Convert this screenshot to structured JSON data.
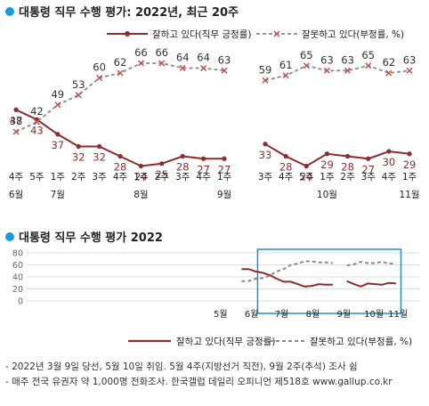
{
  "chart_data": [
    {
      "type": "line",
      "title": "대통령 직무 수행 평가: 2022년, 최근 20주",
      "x": [
        "4주",
        "5주",
        "1주",
        "2주",
        "3주",
        "4주",
        "1주",
        "2주",
        "3주",
        "4주",
        "1주",
        "3주",
        "4주",
        "5주",
        "1주",
        "2주",
        "3주",
        "4주",
        "1주"
      ],
      "month_labels": [
        {
          "label": "6월",
          "index": 0
        },
        {
          "label": "7월",
          "index": 2
        },
        {
          "label": "8월",
          "index": 6
        },
        {
          "label": "9월",
          "index": 10
        },
        {
          "label": "10월",
          "index": 14
        },
        {
          "label": "11월",
          "index": 18
        }
      ],
      "break_after_index": 10,
      "series": [
        {
          "name": "잘하고 있다(직무 긍정률)",
          "color": "#8b2d2d",
          "style": "solid",
          "marker": "dot",
          "values": [
            47,
            43,
            37,
            32,
            32,
            28,
            24,
            25,
            28,
            27,
            27,
            33,
            28,
            24,
            29,
            28,
            27,
            30,
            29
          ]
        },
        {
          "name": "잘못하고 있다(부정률, %)",
          "color": "#8a8a8a",
          "marker_color": "#c0504d",
          "style": "dashed",
          "marker": "x",
          "values": [
            38,
            42,
            49,
            53,
            60,
            62,
            66,
            66,
            64,
            64,
            63,
            59,
            61,
            65,
            63,
            63,
            65,
            62,
            63
          ]
        }
      ],
      "ylim": [
        15,
        75
      ],
      "legend": "top",
      "grid": false
    },
    {
      "type": "line",
      "title": "대통령 직무 수행 평가 2022",
      "x_ticks": [
        "5월",
        "6월",
        "7월",
        "8월",
        "9월",
        "10월",
        "11월"
      ],
      "y_ticks": [
        0,
        20,
        40,
        60,
        80
      ],
      "ylim": [
        0,
        80
      ],
      "grid": true,
      "highlight": "최근 20주 (6월 4주–11월 1주)",
      "series": [
        {
          "name": "잘하고 있다(직무 긍정률)",
          "color": "#8b2d2d",
          "style": "solid",
          "points": [
            [
              "2022-05-08",
              52
            ],
            [
              "2022-05-22",
              52
            ],
            [
              "2022-06-05",
              53
            ],
            [
              "2022-06-12",
              53
            ],
            [
              "2022-06-19",
              49
            ],
            [
              "2022-06-26",
              47
            ],
            [
              "2022-07-03",
              43
            ],
            [
              "2022-07-10",
              37
            ],
            [
              "2022-07-17",
              32
            ],
            [
              "2022-07-24",
              32
            ],
            [
              "2022-07-31",
              28
            ],
            [
              "2022-08-07",
              24
            ],
            [
              "2022-08-14",
              25
            ],
            [
              "2022-08-21",
              28
            ],
            [
              "2022-08-28",
              27
            ],
            [
              "2022-09-04",
              27
            ],
            [
              "2022-09-18",
              33
            ],
            [
              "2022-09-25",
              28
            ],
            [
              "2022-10-02",
              24
            ],
            [
              "2022-10-09",
              29
            ],
            [
              "2022-10-16",
              28
            ],
            [
              "2022-10-23",
              27
            ],
            [
              "2022-10-30",
              30
            ],
            [
              "2022-11-06",
              29
            ]
          ]
        },
        {
          "name": "잘못하고 있다(부정률, %)",
          "color": "#8a8a8a",
          "style": "dashed",
          "points": [
            [
              "2022-05-08",
              37
            ],
            [
              "2022-05-22",
              34
            ],
            [
              "2022-06-05",
              33
            ],
            [
              "2022-06-12",
              33
            ],
            [
              "2022-06-19",
              37
            ],
            [
              "2022-06-26",
              38
            ],
            [
              "2022-07-03",
              42
            ],
            [
              "2022-07-10",
              49
            ],
            [
              "2022-07-17",
              53
            ],
            [
              "2022-07-24",
              60
            ],
            [
              "2022-07-31",
              62
            ],
            [
              "2022-08-07",
              66
            ],
            [
              "2022-08-14",
              66
            ],
            [
              "2022-08-21",
              64
            ],
            [
              "2022-08-28",
              64
            ],
            [
              "2022-09-04",
              63
            ],
            [
              "2022-09-18",
              59
            ],
            [
              "2022-09-25",
              61
            ],
            [
              "2022-10-02",
              65
            ],
            [
              "2022-10-09",
              63
            ],
            [
              "2022-10-16",
              63
            ],
            [
              "2022-10-23",
              65
            ],
            [
              "2022-10-30",
              62
            ],
            [
              "2022-11-06",
              63
            ]
          ]
        }
      ]
    }
  ],
  "notes": [
    "- 2022년 3월 9일 당선, 5월 10일 취임. 5월 4주(지방선거 직전), 9월 2주(추석) 조사 쉼",
    "- 매주 전국 유권자 약 1,000명 전화조사. 한국갤럽 데일리 오피니언 제518호 www.gallup.co.kr"
  ]
}
